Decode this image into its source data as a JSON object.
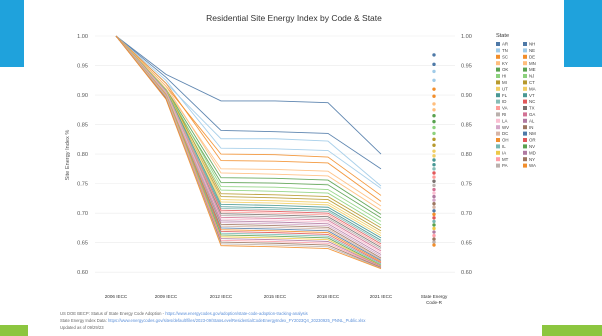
{
  "decor": {
    "accent_blue": "#1fa2dc",
    "accent_green": "#8cc63f"
  },
  "chart_data": {
    "type": "line",
    "title": "Residential Site Energy Index by Code & State",
    "ylabel": "Site Energy Index %",
    "right_axis_title": "State Energy Code-R",
    "ylim": [
      0.58,
      1.0
    ],
    "yticks": [
      "1.00",
      "0.95",
      "0.90",
      "0.85",
      "0.80",
      "0.75",
      "0.70",
      "0.65",
      "0.60"
    ],
    "grid": true,
    "categories": [
      "2006 IECC",
      "2009 IECC",
      "2012 IECC",
      "2015 IECC",
      "2018 IECC",
      "2021 IECC",
      "State Energy Code-R"
    ],
    "legend": {
      "title": "State",
      "position": "right"
    },
    "series": [
      {
        "name": "AR",
        "color": "#4e79a7",
        "values": [
          1.0,
          0.935,
          0.89,
          0.89,
          0.887,
          0.8,
          0.968
        ]
      },
      {
        "name": "NH",
        "color": "#4e79a7",
        "values": [
          1.0,
          0.93,
          0.84,
          0.838,
          0.835,
          0.775,
          0.952
        ]
      },
      {
        "name": "TN",
        "color": "#a0cbe8",
        "values": [
          1.0,
          0.92,
          0.826,
          0.826,
          0.822,
          0.746,
          0.94
        ]
      },
      {
        "name": "NE",
        "color": "#a0cbe8",
        "values": [
          1.0,
          0.925,
          0.81,
          0.809,
          0.806,
          0.742,
          0.925
        ]
      },
      {
        "name": "SC",
        "color": "#f28e2b",
        "values": [
          1.0,
          0.915,
          0.8,
          0.799,
          0.795,
          0.73,
          0.91
        ]
      },
      {
        "name": "DE",
        "color": "#f28e2b",
        "values": [
          1.0,
          0.92,
          0.789,
          0.788,
          0.785,
          0.72,
          0.898
        ]
      },
      {
        "name": "KY",
        "color": "#ffbe7d",
        "values": [
          1.0,
          0.91,
          0.775,
          0.774,
          0.771,
          0.712,
          0.885
        ]
      },
      {
        "name": "MN",
        "color": "#ffbe7d",
        "values": [
          1.0,
          0.915,
          0.768,
          0.766,
          0.763,
          0.705,
          0.875
        ]
      },
      {
        "name": "OK",
        "color": "#59a14f",
        "values": [
          1.0,
          0.91,
          0.76,
          0.759,
          0.756,
          0.698,
          0.865
        ]
      },
      {
        "name": "ME",
        "color": "#59a14f",
        "values": [
          1.0,
          0.905,
          0.752,
          0.751,
          0.748,
          0.692,
          0.855
        ]
      },
      {
        "name": "HI",
        "color": "#8cd17d",
        "values": [
          1.0,
          0.91,
          0.745,
          0.744,
          0.74,
          0.686,
          0.845
        ]
      },
      {
        "name": "NJ",
        "color": "#8cd17d",
        "values": [
          1.0,
          0.905,
          0.739,
          0.737,
          0.734,
          0.68,
          0.835
        ]
      },
      {
        "name": "MI",
        "color": "#b6992d",
        "values": [
          1.0,
          0.91,
          0.733,
          0.731,
          0.728,
          0.675,
          0.825
        ]
      },
      {
        "name": "CT",
        "color": "#b6992d",
        "values": [
          1.0,
          0.905,
          0.728,
          0.726,
          0.723,
          0.67,
          0.815
        ]
      },
      {
        "name": "UT",
        "color": "#f1ce63",
        "values": [
          1.0,
          0.91,
          0.723,
          0.721,
          0.718,
          0.666,
          0.805
        ]
      },
      {
        "name": "MA",
        "color": "#f1ce63",
        "values": [
          1.0,
          0.905,
          0.719,
          0.717,
          0.714,
          0.662,
          0.797
        ]
      },
      {
        "name": "FL",
        "color": "#499894",
        "values": [
          1.0,
          0.908,
          0.715,
          0.713,
          0.71,
          0.658,
          0.79
        ]
      },
      {
        "name": "VT",
        "color": "#499894",
        "values": [
          1.0,
          0.904,
          0.711,
          0.709,
          0.706,
          0.654,
          0.782
        ]
      },
      {
        "name": "ID",
        "color": "#86bcb6",
        "values": [
          1.0,
          0.907,
          0.708,
          0.706,
          0.703,
          0.651,
          0.775
        ]
      },
      {
        "name": "NC",
        "color": "#e15759",
        "values": [
          1.0,
          0.903,
          0.705,
          0.703,
          0.7,
          0.648,
          0.768
        ]
      },
      {
        "name": "VA",
        "color": "#ff9d9a",
        "values": [
          1.0,
          0.906,
          0.702,
          0.7,
          0.697,
          0.645,
          0.761
        ]
      },
      {
        "name": "TX",
        "color": "#79706e",
        "values": [
          1.0,
          0.902,
          0.699,
          0.697,
          0.694,
          0.642,
          0.754
        ]
      },
      {
        "name": "RI",
        "color": "#bab0ac",
        "values": [
          1.0,
          0.905,
          0.696,
          0.694,
          0.691,
          0.639,
          0.747
        ]
      },
      {
        "name": "GA",
        "color": "#d37295",
        "values": [
          1.0,
          0.901,
          0.693,
          0.691,
          0.688,
          0.636,
          0.74
        ]
      },
      {
        "name": "LA",
        "color": "#fabfd2",
        "values": [
          1.0,
          0.904,
          0.69,
          0.688,
          0.685,
          0.633,
          0.734
        ]
      },
      {
        "name": "AL",
        "color": "#b07aa1",
        "values": [
          1.0,
          0.9,
          0.687,
          0.685,
          0.682,
          0.63,
          0.728
        ]
      },
      {
        "name": "WV",
        "color": "#d4a6c8",
        "values": [
          1.0,
          0.903,
          0.684,
          0.682,
          0.679,
          0.627,
          0.722
        ]
      },
      {
        "name": "IN",
        "color": "#9d7660",
        "values": [
          1.0,
          0.899,
          0.681,
          0.679,
          0.676,
          0.624,
          0.716
        ]
      },
      {
        "name": "DC",
        "color": "#d7b5a6",
        "values": [
          1.0,
          0.902,
          0.678,
          0.676,
          0.673,
          0.622,
          0.71
        ]
      },
      {
        "name": "NM",
        "color": "#4e79a7",
        "values": [
          1.0,
          0.898,
          0.675,
          0.673,
          0.67,
          0.62,
          0.704
        ]
      },
      {
        "name": "OH",
        "color": "#f28e2b",
        "values": [
          1.0,
          0.901,
          0.672,
          0.67,
          0.667,
          0.618,
          0.698
        ]
      },
      {
        "name": "OR",
        "color": "#e15759",
        "values": [
          1.0,
          0.897,
          0.669,
          0.667,
          0.664,
          0.616,
          0.692
        ]
      },
      {
        "name": "IL",
        "color": "#76b7b2",
        "values": [
          1.0,
          0.9,
          0.666,
          0.664,
          0.661,
          0.614,
          0.686
        ]
      },
      {
        "name": "NV",
        "color": "#59a14f",
        "values": [
          1.0,
          0.896,
          0.663,
          0.661,
          0.658,
          0.612,
          0.68
        ]
      },
      {
        "name": "IA",
        "color": "#edc948",
        "values": [
          1.0,
          0.899,
          0.66,
          0.658,
          0.655,
          0.611,
          0.674
        ]
      },
      {
        "name": "MD",
        "color": "#b07aa1",
        "values": [
          1.0,
          0.895,
          0.657,
          0.655,
          0.652,
          0.61,
          0.668
        ]
      },
      {
        "name": "MT",
        "color": "#ff9da7",
        "values": [
          1.0,
          0.898,
          0.654,
          0.652,
          0.649,
          0.609,
          0.662
        ]
      },
      {
        "name": "NY",
        "color": "#9c755f",
        "values": [
          1.0,
          0.894,
          0.651,
          0.649,
          0.646,
          0.608,
          0.656
        ]
      },
      {
        "name": "PA",
        "color": "#bab0ac",
        "values": [
          1.0,
          0.897,
          0.648,
          0.646,
          0.643,
          0.607,
          0.651
        ]
      },
      {
        "name": "WA",
        "color": "#f28e2b",
        "values": [
          1.0,
          0.893,
          0.645,
          0.643,
          0.64,
          0.606,
          0.646
        ]
      }
    ]
  },
  "footer": {
    "line1_prefix": "US DOE BECP: Status of State Energy Code Adoption - ",
    "line1_link": "https://www.energycodes.gov/adoption/state-code-adoption-tracking-analysis",
    "line2_prefix": "State Energy Index Data: ",
    "line2_link": "https://www.energycodes.gov/sites/default/files/2023-09/StateLevelResidentialCodeEnergyIndex_FY2023Q4_20230925_PNNL_Public.xlsx",
    "line3": "Updated as of 09/29/23"
  }
}
